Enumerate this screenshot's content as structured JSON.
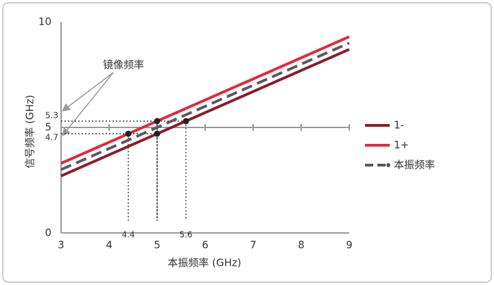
{
  "chart_data": {
    "type": "line",
    "x_label": "本振频率 (GHz)",
    "y_label": "信号频率 (GHz)",
    "annotation": "镜像频率",
    "x": [
      3,
      9
    ],
    "series": [
      {
        "name": "1-",
        "color": "#8c1c2c",
        "values": [
          2.7,
          8.7
        ]
      },
      {
        "name": "1+",
        "color": "#e3283c",
        "values": [
          3.3,
          9.3
        ]
      },
      {
        "name": "本振频率",
        "color": "#5a5a5a",
        "values": [
          3,
          9
        ],
        "dashed": true
      }
    ],
    "points": {
      "x": [
        4.4,
        5,
        5,
        5.6
      ],
      "y": [
        4.7,
        5.3,
        4.7,
        5.3
      ],
      "color": "#222"
    },
    "x_markers": [
      4.4,
      5.6
    ],
    "y_markers": [
      5.3,
      4.7
    ],
    "xlim": [
      3,
      9
    ],
    "ylim": [
      0,
      10
    ],
    "xticks": [
      3,
      4,
      5,
      6,
      7,
      8,
      9
    ],
    "yticks": [
      0,
      5,
      10
    ]
  }
}
